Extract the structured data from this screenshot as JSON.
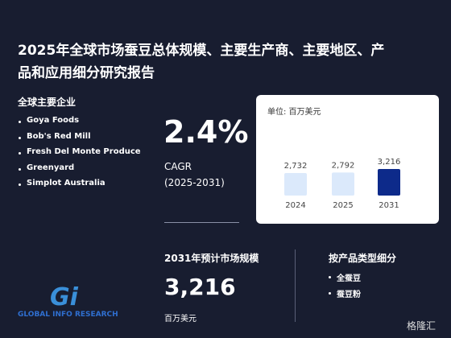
{
  "header": {
    "title_line1": "2025年全球市场蚕豆总体规模、主要生产商、主要地区、产",
    "title_line2": "品和应用细分研究报告"
  },
  "companies": {
    "heading": "全球主要企业",
    "items": [
      "Goya Foods",
      "Bob's Red Mill",
      "Fresh Del Monte Produce",
      "Greenyard",
      "Simplot Australia"
    ]
  },
  "cagr": {
    "value": "2.4%",
    "label": "CAGR",
    "period": "(2025-2031)"
  },
  "chart_data": {
    "type": "bar",
    "unit": "单位: 百万美元",
    "categories": [
      "2024",
      "2025",
      "2031"
    ],
    "values": [
      2732,
      2792,
      3216
    ],
    "value_labels": [
      "2,732",
      "2,792",
      "3,216"
    ],
    "colors": [
      "#dbe9fb",
      "#dbe9fb",
      "#0d2a8a"
    ]
  },
  "market_size": {
    "heading": "2031年预计市场规模",
    "value": "3,216",
    "unit": "百万美元"
  },
  "segments": {
    "heading": "按产品类型细分",
    "items": [
      "全蚕豆",
      "蚕豆粉"
    ]
  },
  "logo": {
    "mark": "Gi",
    "text": "GLOBAL INFO RESEARCH"
  },
  "watermark": "格隆汇"
}
